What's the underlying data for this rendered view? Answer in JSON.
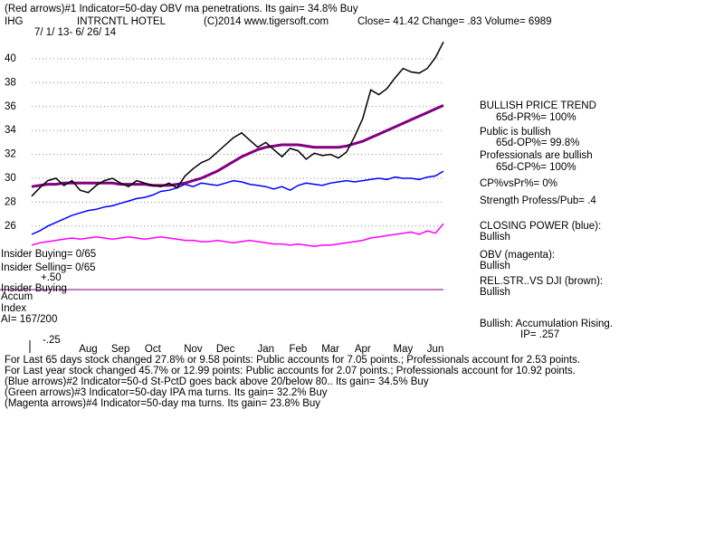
{
  "chart_data": {
    "type": "line",
    "annotations": [
      "(Red arrows)#1 Indicator=50-day OBV ma penetrations.  Its gain=  34.8% Buy",
      "IHG",
      "INTRCNTL HOTEL",
      "(C)2014 www.tigersoft.com",
      "Close=  41.42  Change= .83 Volume=  6989",
      "7/ 1/ 13-  6/ 26/ 14",
      "BULLISH PRICE TREND",
      "65d-PR%= 100%",
      "Public is bullish",
      "65d-OP%= 99.8%",
      "Professionals are bullish",
      "65d-CP%= 100%",
      "CP%vsPr%=  0%",
      "Strength Profess/Pub= .4",
      "CLOSING POWER (blue):",
      "Bullish",
      "OBV (magenta):",
      "Bullish",
      "REL.STR..VS DJI (brown):",
      "Bullish",
      "Bullish: Accumulation Rising.",
      "IP=  .257",
      "Insider Buying= 0/65",
      "Insider Selling= 0/65",
      "+.50",
      "Insider Buying",
      "Accum",
      "Index",
      "AI= 167/200",
      "-.25",
      "For Last 65 days stock changed  27.8% or  9.58 points:  Public accounts for  7.05 points.;  Professionals account for  2.53 points.",
      "For Last year stock changed  45.7% or  12.99 points:  Public accounts for  2.07 points.;  Professionals account for  10.92 points.",
      "(Blue arrows)#2 Indicator=50-d St-PctD goes back above 20/below 80..  Its gain=  34.5% Buy",
      "(Green arrows)#3 Indicator=50-day IPA ma turns.  Its gain=  32.2% Buy",
      "(Magenta arrows)#4 Indicator=50-day ma turns.  Its gain=  23.8% Buy"
    ],
    "categories": [
      null,
      null,
      null,
      null,
      null,
      null,
      null,
      "Aug",
      null,
      null,
      null,
      "Sep",
      null,
      null,
      null,
      "Oct",
      null,
      null,
      null,
      null,
      "Nov",
      null,
      null,
      null,
      "Dec",
      null,
      null,
      null,
      null,
      "Jan",
      null,
      null,
      null,
      "Feb",
      null,
      null,
      null,
      "Mar",
      null,
      null,
      null,
      "Apr",
      null,
      null,
      null,
      null,
      "May",
      null,
      null,
      null,
      "Jun",
      null
    ],
    "series": [
      {
        "color": "#ff00ff",
        "values": [
          24.4,
          24.6,
          24.7,
          24.8,
          24.9,
          25.0,
          24.9,
          25.0,
          25.1,
          25.0,
          24.9,
          25.0,
          25.1,
          25.0,
          24.9,
          25.0,
          25.1,
          25.0,
          24.9,
          24.8,
          24.8,
          24.7,
          24.7,
          24.8,
          24.7,
          24.6,
          24.7,
          24.8,
          24.7,
          24.6,
          24.5,
          24.5,
          24.4,
          24.5,
          24.4,
          24.3,
          24.4,
          24.4,
          24.5,
          24.6,
          24.7,
          24.8,
          25.0,
          25.1,
          25.2,
          25.3,
          25.4,
          25.5,
          25.3,
          25.6,
          25.4,
          26.2
        ]
      },
      {
        "color": "#0000ff",
        "values": [
          25.3,
          25.6,
          26.0,
          26.3,
          26.6,
          26.9,
          27.1,
          27.3,
          27.4,
          27.6,
          27.7,
          27.9,
          28.1,
          28.3,
          28.4,
          28.6,
          28.9,
          29.0,
          29.2,
          29.5,
          29.3,
          29.6,
          29.5,
          29.4,
          29.6,
          29.8,
          29.7,
          29.5,
          29.4,
          29.3,
          29.1,
          29.3,
          29.0,
          29.4,
          29.6,
          29.5,
          29.4,
          29.6,
          29.7,
          29.8,
          29.7,
          29.8,
          29.9,
          30.0,
          29.9,
          30.1,
          30.0,
          30.0,
          29.9,
          30.1,
          30.2,
          30.6
        ]
      },
      {
        "color": "#800080",
        "values": [
          29.3,
          29.4,
          29.5,
          29.5,
          29.6,
          29.6,
          29.6,
          29.6,
          29.6,
          29.6,
          29.6,
          29.5,
          29.5,
          29.5,
          29.5,
          29.4,
          29.4,
          29.4,
          29.5,
          29.6,
          29.8,
          30.0,
          30.3,
          30.6,
          31.0,
          31.4,
          31.8,
          32.1,
          32.4,
          32.6,
          32.7,
          32.8,
          32.8,
          32.8,
          32.7,
          32.6,
          32.6,
          32.6,
          32.6,
          32.7,
          32.9,
          33.1,
          33.4,
          33.7,
          34.0,
          34.3,
          34.6,
          34.9,
          35.2,
          35.5,
          35.8,
          36.1
        ]
      },
      {
        "color": "#000000",
        "values": [
          28.5,
          29.2,
          29.8,
          30.0,
          29.4,
          29.8,
          29.0,
          28.8,
          29.4,
          29.8,
          30.0,
          29.6,
          29.3,
          29.8,
          29.6,
          29.4,
          29.3,
          29.6,
          29.2,
          30.2,
          30.8,
          31.3,
          31.6,
          32.2,
          32.8,
          33.4,
          33.8,
          33.2,
          32.6,
          33.0,
          32.4,
          31.8,
          32.5,
          32.3,
          31.6,
          32.1,
          31.9,
          32.0,
          31.7,
          32.2,
          33.5,
          35.0,
          37.4,
          37.0,
          37.5,
          38.4,
          39.2,
          38.9,
          38.8,
          39.2,
          40.1,
          41.42
        ]
      }
    ],
    "ylim": [
      23,
      42
    ],
    "yticks": [
      26,
      28,
      30,
      32,
      34,
      36,
      38,
      40
    ],
    "grid": true
  }
}
